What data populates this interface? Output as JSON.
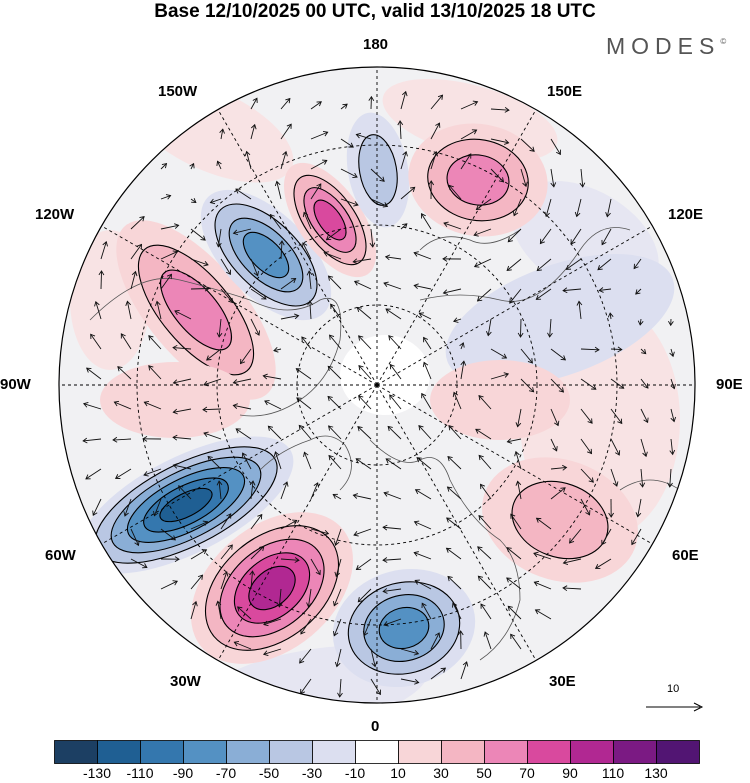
{
  "title": "Base 12/10/2025 00 UTC, valid 13/10/2025 18 UTC",
  "brand": {
    "name": "MODES",
    "mark": "©"
  },
  "longitude_labels": [
    "180",
    "150E",
    "120E",
    "90E",
    "60E",
    "30E",
    "0",
    "30W",
    "60W",
    "90W",
    "120W",
    "150W"
  ],
  "reference_vector": {
    "value": "10"
  },
  "colorbar": {
    "tick_labels": [
      "-130",
      "-110",
      "-90",
      "-70",
      "-50",
      "-30",
      "-10",
      "10",
      "30",
      "50",
      "70",
      "90",
      "110",
      "130"
    ],
    "colors": [
      "#1c3f63",
      "#1f5f93",
      "#3477ae",
      "#5491c3",
      "#8aaed6",
      "#b9c7e3",
      "#dcdff0",
      "#ffffff",
      "#f8d6d8",
      "#f4b6c3",
      "#ec86b7",
      "#d9499e",
      "#b12892",
      "#7b1a83",
      "#521573"
    ]
  },
  "anomalies": [
    {
      "name": "negative-center-north-atlantic",
      "value": -130
    },
    {
      "name": "positive-center-greenland-sea",
      "value": 110
    },
    {
      "name": "negative-center-scandinavia",
      "value": -90
    },
    {
      "name": "positive-center-north-america",
      "value": 70
    },
    {
      "name": "negative-center-alaska-gulf",
      "value": -90
    },
    {
      "name": "positive-center-bering",
      "value": 90
    },
    {
      "name": "negative-center-chukchi",
      "value": -50
    },
    {
      "name": "positive-center-east-siberia",
      "value": 70
    },
    {
      "name": "negative-center-central-siberia",
      "value": -30
    },
    {
      "name": "positive-center-central-asia",
      "value": 50
    },
    {
      "name": "positive-center-ural",
      "value": 30
    },
    {
      "name": "positive-center-hudson",
      "value": 30
    }
  ]
}
